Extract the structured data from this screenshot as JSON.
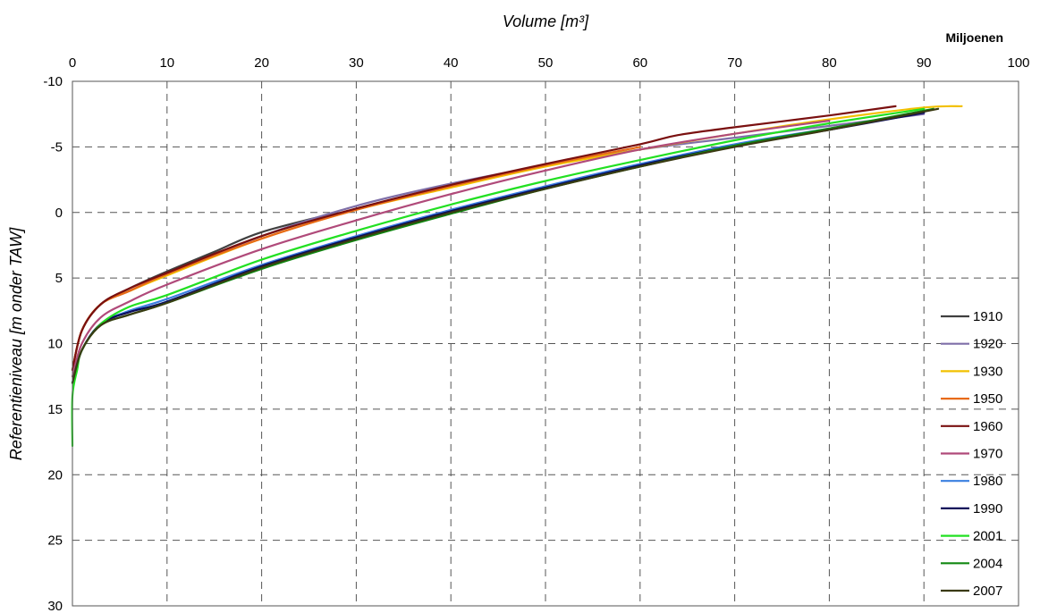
{
  "chart_data": {
    "type": "line",
    "title": "",
    "xlabel": "Volume [m³]",
    "x_unit_label": "Miljoenen",
    "ylabel": "Referentieniveau [m onder TAW]",
    "xlim": [
      0,
      100
    ],
    "ylim": [
      -10,
      30
    ],
    "y_inverted": true,
    "x_axis_position": "top",
    "xticks": [
      "0",
      "10",
      "20",
      "30",
      "40",
      "50",
      "60",
      "70",
      "80",
      "90",
      "100"
    ],
    "yticks": [
      "-10",
      "-5",
      "0",
      "5",
      "10",
      "15",
      "20",
      "25",
      "30"
    ],
    "grid": true,
    "legend_position": "right",
    "series": [
      {
        "name": "1910",
        "color": "#404040",
        "x": [
          0,
          1,
          3,
          6,
          10,
          15,
          20,
          28
        ],
        "y": [
          12,
          9,
          7,
          5.8,
          4.5,
          3,
          1.5,
          0
        ]
      },
      {
        "name": "1920",
        "color": "#7f6fa8",
        "x": [
          0,
          1,
          3,
          6,
          10,
          20,
          30,
          40,
          50,
          60,
          70,
          80,
          90
        ],
        "y": [
          12,
          9,
          7,
          6,
          4.7,
          1.8,
          -0.5,
          -2.2,
          -3.6,
          -4.8,
          -5.7,
          -6.6,
          -7.5
        ]
      },
      {
        "name": "1930",
        "color": "#f2c000",
        "x": [
          0,
          1,
          3,
          6,
          10,
          20,
          30,
          40,
          50,
          60,
          70,
          80,
          90,
          94
        ],
        "y": [
          12,
          9,
          7,
          6,
          4.8,
          2,
          -0.2,
          -1.9,
          -3.5,
          -4.8,
          -6,
          -7.1,
          -8,
          -8.1
        ]
      },
      {
        "name": "1950",
        "color": "#e86a17",
        "x": [
          0,
          1,
          3,
          6,
          10,
          20,
          30,
          40,
          50,
          60
        ],
        "y": [
          12,
          9,
          7,
          6,
          4.7,
          2,
          -0.2,
          -2,
          -3.6,
          -5
        ]
      },
      {
        "name": "1960",
        "color": "#7a1010",
        "x": [
          0,
          1,
          3,
          6,
          10,
          20,
          30,
          40,
          50,
          60,
          64,
          70,
          80,
          87
        ],
        "y": [
          12,
          9,
          7,
          5.8,
          4.6,
          1.8,
          -0.3,
          -2.1,
          -3.7,
          -5.2,
          -5.9,
          -6.5,
          -7.4,
          -8.1
        ]
      },
      {
        "name": "1970",
        "color": "#b04a7a",
        "x": [
          0,
          1,
          3,
          6,
          10,
          20,
          30,
          40,
          50,
          60,
          70,
          80
        ],
        "y": [
          12.5,
          10,
          8,
          6.8,
          5.5,
          2.8,
          0.6,
          -1.4,
          -3.2,
          -4.8,
          -6,
          -7
        ]
      },
      {
        "name": "1980",
        "color": "#3a7fe0",
        "x": [
          0,
          1,
          3,
          6,
          10,
          20,
          30,
          40,
          50,
          60,
          70,
          80,
          90
        ],
        "y": [
          13,
          10.5,
          8.5,
          7.5,
          6.6,
          4,
          1.8,
          -0.2,
          -2,
          -3.7,
          -5.2,
          -6.4,
          -7.6
        ]
      },
      {
        "name": "1990",
        "color": "#0a0a5a",
        "x": [
          0,
          1,
          3,
          6,
          10,
          20,
          30,
          40,
          50,
          60,
          70,
          80,
          90
        ],
        "y": [
          13,
          10.5,
          8.5,
          7.6,
          6.8,
          4.1,
          1.9,
          -0.1,
          -1.9,
          -3.6,
          -5.1,
          -6.3,
          -7.6
        ]
      },
      {
        "name": "2001",
        "color": "#22e022",
        "x": [
          0,
          0,
          0.5,
          1,
          3,
          6,
          10,
          20,
          30,
          40,
          50,
          60,
          70,
          80,
          90
        ],
        "y": [
          17.8,
          14,
          12,
          10.5,
          8.5,
          7.2,
          6.3,
          3.6,
          1.4,
          -0.6,
          -2.4,
          -4,
          -5.5,
          -6.8,
          -7.9
        ]
      },
      {
        "name": "2004",
        "color": "#118811",
        "x": [
          0,
          1,
          3,
          6,
          10,
          20,
          30,
          40,
          50,
          60,
          70,
          80,
          91
        ],
        "y": [
          13,
          10.5,
          8.6,
          7.8,
          6.9,
          4.3,
          2.1,
          0.1,
          -1.8,
          -3.5,
          -5.1,
          -6.4,
          -7.9
        ]
      },
      {
        "name": "2007",
        "color": "#3a3a12",
        "x": [
          0,
          1,
          3,
          6,
          10,
          20,
          30,
          40,
          50,
          60,
          70,
          80,
          91.5
        ],
        "y": [
          13,
          10.5,
          8.6,
          7.8,
          6.9,
          4.2,
          2,
          0,
          -1.8,
          -3.5,
          -5,
          -6.3,
          -7.9
        ]
      }
    ]
  }
}
